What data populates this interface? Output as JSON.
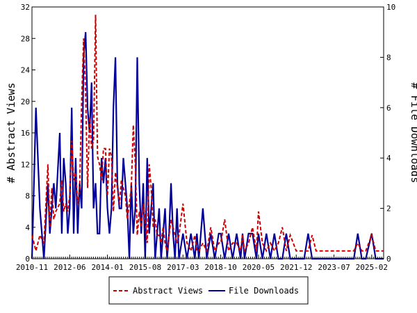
{
  "chart_data": {
    "type": "line",
    "title": "",
    "xlabel": "",
    "ylabel": "# Abstract Views",
    "y2label": "# File Downloads",
    "x_tick_labels": [
      "2010-11",
      "2012-06",
      "2014-01",
      "2015-08",
      "2017-03",
      "2018-10",
      "2020-05",
      "2021-12",
      "2023-07",
      "2025-02"
    ],
    "x_range": [
      "2010-11",
      "2025-08"
    ],
    "ylim": [
      0,
      32
    ],
    "y_ticks": [
      0,
      4,
      8,
      12,
      16,
      20,
      24,
      28,
      32
    ],
    "y2lim": [
      0,
      10
    ],
    "y2_ticks": [
      0,
      2,
      4,
      6,
      8,
      10
    ],
    "grid": false,
    "legend_position": "bottom-center",
    "series": [
      {
        "name": "Abstract Views",
        "axis": "left",
        "color": "#cc0000",
        "style": "dashed",
        "x": [
          "2010-11",
          "2011-01",
          "2011-03",
          "2011-05",
          "2011-07",
          "2011-08",
          "2011-09",
          "2011-10",
          "2011-11",
          "2012-01",
          "2012-02",
          "2012-03",
          "2012-04",
          "2012-05",
          "2012-06",
          "2012-07",
          "2012-08",
          "2012-09",
          "2012-10",
          "2012-11",
          "2012-12",
          "2013-01",
          "2013-02",
          "2013-03",
          "2013-04",
          "2013-05",
          "2013-06",
          "2013-07",
          "2013-08",
          "2013-09",
          "2013-10",
          "2013-11",
          "2013-12",
          "2014-01",
          "2014-02",
          "2014-03",
          "2014-04",
          "2014-05",
          "2014-06",
          "2014-07",
          "2014-08",
          "2014-09",
          "2014-10",
          "2014-11",
          "2014-12",
          "2015-01",
          "2015-02",
          "2015-03",
          "2015-04",
          "2015-05",
          "2015-06",
          "2015-07",
          "2015-08",
          "2015-09",
          "2015-10",
          "2015-11",
          "2015-12",
          "2016-01",
          "2016-02",
          "2016-03",
          "2016-04",
          "2016-05",
          "2016-06",
          "2016-07",
          "2016-08",
          "2016-09",
          "2016-10",
          "2016-11",
          "2016-12",
          "2017-01",
          "2017-03",
          "2017-05",
          "2017-07",
          "2017-09",
          "2017-10",
          "2017-11",
          "2018-01",
          "2018-03",
          "2018-05",
          "2018-07",
          "2018-09",
          "2018-10",
          "2018-12",
          "2019-02",
          "2019-04",
          "2019-06",
          "2019-08",
          "2019-09",
          "2019-10",
          "2019-12",
          "2020-02",
          "2020-04",
          "2020-05",
          "2020-07",
          "2020-09",
          "2020-11",
          "2021-01",
          "2021-03",
          "2021-05",
          "2021-07",
          "2021-09",
          "2021-12",
          "2022-02",
          "2022-04",
          "2022-06",
          "2022-08",
          "2022-10",
          "2022-12",
          "2023-02",
          "2023-04",
          "2023-07",
          "2023-09",
          "2023-11",
          "2024-01",
          "2024-03",
          "2024-05",
          "2024-07",
          "2024-09",
          "2024-11",
          "2025-02",
          "2025-04",
          "2025-06",
          "2025-08"
        ],
        "values": [
          3,
          1,
          3,
          2,
          12,
          4,
          9,
          5,
          6,
          7,
          10,
          6,
          7,
          6,
          8,
          15,
          10,
          11,
          7,
          9,
          20,
          28,
          21,
          9,
          18,
          14,
          15,
          31,
          13,
          12,
          10,
          14,
          14,
          8,
          14,
          13,
          6,
          11,
          9,
          7,
          10,
          9,
          8,
          5,
          7,
          9,
          17,
          12,
          3,
          6,
          4,
          7,
          5,
          2,
          12,
          9,
          4,
          5,
          3,
          3,
          2,
          4,
          2,
          1,
          3,
          5,
          4,
          3,
          2,
          3,
          7,
          2,
          1,
          3,
          1,
          1,
          2,
          1,
          4,
          1,
          2,
          2,
          5,
          1,
          2,
          2,
          1,
          3,
          1,
          2,
          4,
          1,
          6,
          2,
          1,
          2,
          1,
          2,
          4,
          1,
          3,
          1,
          1,
          1,
          1,
          3,
          1,
          1,
          1,
          1,
          1,
          1,
          1,
          1,
          1,
          1,
          2,
          1,
          1,
          3,
          1,
          1,
          1
        ]
      },
      {
        "name": "File Downloads",
        "axis": "right",
        "color": "#000099",
        "style": "solid",
        "x": [
          "2010-11",
          "2011-01",
          "2011-03",
          "2011-05",
          "2011-07",
          "2011-08",
          "2011-09",
          "2011-10",
          "2011-11",
          "2012-01",
          "2012-02",
          "2012-03",
          "2012-04",
          "2012-05",
          "2012-06",
          "2012-07",
          "2012-08",
          "2012-09",
          "2012-10",
          "2012-11",
          "2012-12",
          "2013-01",
          "2013-02",
          "2013-03",
          "2013-04",
          "2013-05",
          "2013-06",
          "2013-07",
          "2013-08",
          "2013-09",
          "2013-10",
          "2013-11",
          "2013-12",
          "2014-01",
          "2014-02",
          "2014-03",
          "2014-04",
          "2014-05",
          "2014-06",
          "2014-07",
          "2014-08",
          "2014-09",
          "2014-10",
          "2014-11",
          "2014-12",
          "2015-01",
          "2015-02",
          "2015-03",
          "2015-04",
          "2015-05",
          "2015-06",
          "2015-07",
          "2015-08",
          "2015-09",
          "2015-10",
          "2015-11",
          "2015-12",
          "2016-01",
          "2016-02",
          "2016-03",
          "2016-04",
          "2016-05",
          "2016-06",
          "2016-07",
          "2016-08",
          "2016-09",
          "2016-10",
          "2016-11",
          "2016-12",
          "2017-01",
          "2017-03",
          "2017-05",
          "2017-07",
          "2017-09",
          "2017-10",
          "2017-11",
          "2018-01",
          "2018-03",
          "2018-05",
          "2018-07",
          "2018-09",
          "2018-10",
          "2018-12",
          "2019-02",
          "2019-04",
          "2019-06",
          "2019-08",
          "2019-09",
          "2019-10",
          "2019-12",
          "2020-02",
          "2020-04",
          "2020-05",
          "2020-07",
          "2020-09",
          "2020-11",
          "2021-01",
          "2021-03",
          "2021-05",
          "2021-07",
          "2021-09",
          "2021-12",
          "2022-02",
          "2022-04",
          "2022-06",
          "2022-08",
          "2022-10",
          "2022-12",
          "2023-02",
          "2023-04",
          "2023-07",
          "2023-09",
          "2023-11",
          "2024-01",
          "2024-03",
          "2024-05",
          "2024-07",
          "2024-09",
          "2024-11",
          "2025-02",
          "2025-04",
          "2025-06",
          "2025-08"
        ],
        "values": [
          0,
          6,
          2,
          0,
          3,
          1,
          2,
          3,
          2,
          5,
          1,
          4,
          3,
          1,
          2,
          6,
          1,
          4,
          1,
          3,
          2,
          8,
          9,
          6,
          5,
          7,
          2,
          3,
          1,
          1,
          4,
          3,
          4,
          2,
          1,
          2,
          6,
          8,
          3,
          2,
          2,
          4,
          3,
          2,
          0,
          3,
          1,
          2,
          8,
          3,
          1,
          3,
          0,
          4,
          1,
          2,
          3,
          0,
          1,
          2,
          0,
          1,
          2,
          0,
          1,
          3,
          1,
          0,
          2,
          0,
          1,
          0,
          1,
          0,
          1,
          0,
          2,
          0,
          1,
          0,
          1,
          1,
          0,
          1,
          0,
          1,
          0,
          1,
          0,
          1,
          1,
          0,
          1,
          0,
          1,
          0,
          1,
          0,
          0,
          1,
          0,
          0,
          0,
          0,
          1,
          0,
          0,
          0,
          0,
          0,
          0,
          0,
          0,
          0,
          0,
          0,
          1,
          0,
          0,
          1,
          0,
          0,
          0
        ]
      }
    ]
  }
}
